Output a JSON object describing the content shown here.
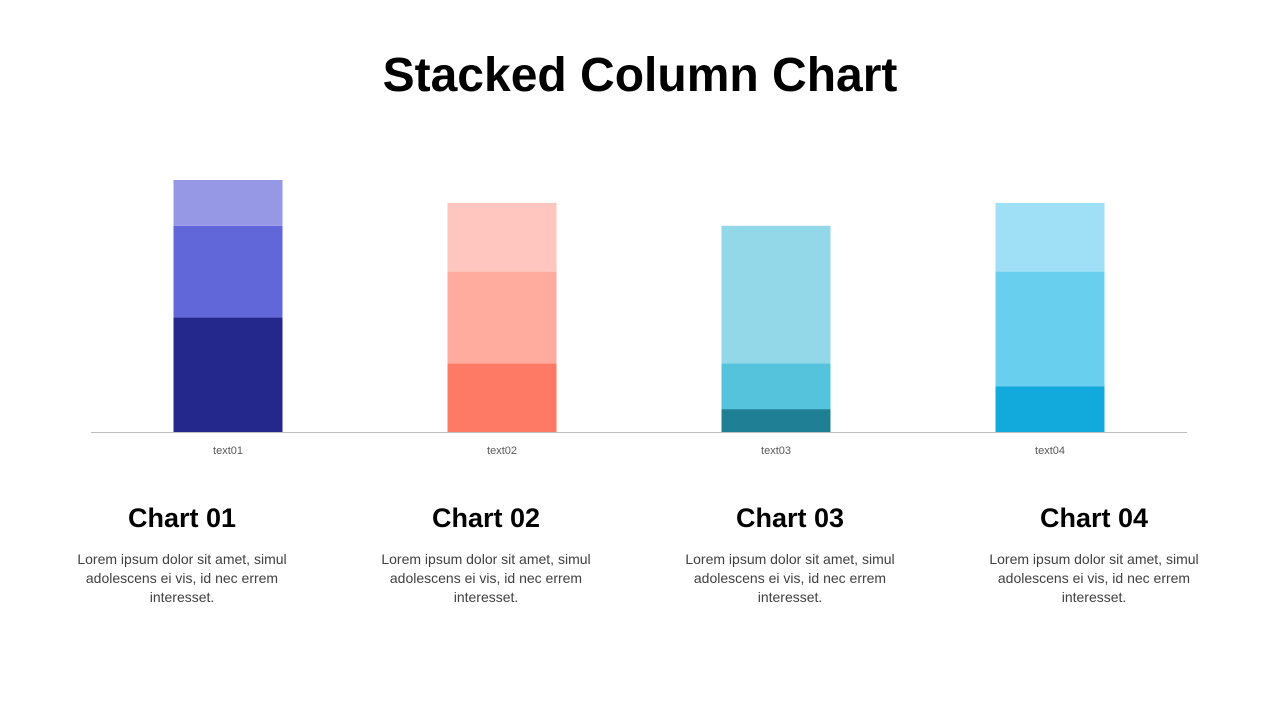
{
  "title": "Stacked Column Chart",
  "chart_data": {
    "type": "bar",
    "stacked": true,
    "categories": [
      "text01",
      "text02",
      "text03",
      "text04"
    ],
    "segments": [
      {
        "values": [
          5,
          3,
          1,
          2
        ],
        "colors": [
          "#24278c",
          "#ff7a65",
          "#1f7f95",
          "#12a9dd"
        ]
      },
      {
        "values": [
          4,
          4,
          2,
          5
        ],
        "colors": [
          "#6166d8",
          "#ffac9f",
          "#56c3dc",
          "#69cfef"
        ]
      },
      {
        "values": [
          2,
          3,
          6,
          3
        ],
        "colors": [
          "#9698e5",
          "#ffc6bf",
          "#92d8e9",
          "#9fe0f7"
        ]
      }
    ],
    "ylim": [
      0,
      11
    ],
    "grid": false,
    "legend": "none",
    "axis_color": "#bfbfbf"
  },
  "cards": [
    {
      "title": "Chart 01",
      "body": "Lorem ipsum dolor sit amet, simul adolescens ei vis, id nec errem interesset."
    },
    {
      "title": "Chart 02",
      "body": "Lorem ipsum dolor sit amet, simul adolescens ei vis, id nec errem interesset."
    },
    {
      "title": "Chart 03",
      "body": "Lorem ipsum dolor sit amet, simul adolescens ei vis, id nec errem interesset."
    },
    {
      "title": "Chart 04",
      "body": "Lorem ipsum dolor sit amet, simul adolescens ei vis, id nec errem interesset."
    }
  ]
}
